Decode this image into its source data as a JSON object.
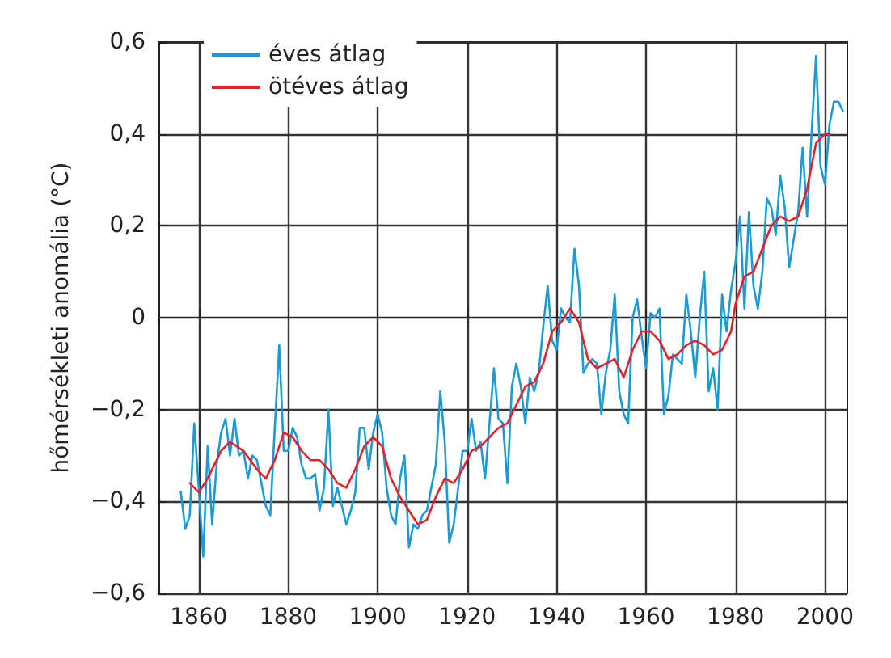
{
  "chart_data": {
    "type": "line",
    "ylabel": "hőmérsékleti anomália (°C)",
    "xlim": [
      1851,
      2005
    ],
    "xticks": [
      1860,
      1880,
      1900,
      1920,
      1940,
      1960,
      1980,
      2000
    ],
    "ylim": [
      -0.6,
      0.6
    ],
    "yticks": [
      {
        "value": -0.6,
        "label": "−0,6"
      },
      {
        "value": -0.4,
        "label": "−0,4"
      },
      {
        "value": -0.2,
        "label": "−0,2"
      },
      0,
      {
        "value": 0.2,
        "label": "0,2"
      },
      {
        "value": 0.4,
        "label": "0,4"
      },
      {
        "value": 0.6,
        "label": "0,6"
      }
    ],
    "grid": true,
    "legend": "top left",
    "marker": "none",
    "line_style": "solid",
    "series": [
      {
        "name": "éves átlag",
        "color": "#1a9ad6",
        "x": [
          1856,
          1857,
          1858,
          1859,
          1860,
          1861,
          1862,
          1863,
          1864,
          1865,
          1866,
          1867,
          1868,
          1869,
          1870,
          1871,
          1872,
          1873,
          1874,
          1875,
          1876,
          1877,
          1878,
          1879,
          1880,
          1881,
          1882,
          1883,
          1884,
          1885,
          1886,
          1887,
          1888,
          1889,
          1890,
          1891,
          1892,
          1893,
          1894,
          1895,
          1896,
          1897,
          1898,
          1899,
          1900,
          1901,
          1902,
          1903,
          1904,
          1905,
          1906,
          1907,
          1908,
          1909,
          1910,
          1911,
          1912,
          1913,
          1914,
          1915,
          1916,
          1917,
          1918,
          1919,
          1920,
          1921,
          1922,
          1923,
          1924,
          1925,
          1926,
          1927,
          1928,
          1929,
          1930,
          1931,
          1932,
          1933,
          1934,
          1935,
          1936,
          1937,
          1938,
          1939,
          1940,
          1941,
          1942,
          1943,
          1944,
          1945,
          1946,
          1947,
          1948,
          1949,
          1950,
          1951,
          1952,
          1953,
          1954,
          1955,
          1956,
          1957,
          1958,
          1959,
          1960,
          1961,
          1962,
          1963,
          1964,
          1965,
          1966,
          1967,
          1968,
          1969,
          1970,
          1971,
          1972,
          1973,
          1974,
          1975,
          1976,
          1977,
          1978,
          1979,
          1980,
          1981,
          1982,
          1983,
          1984,
          1985,
          1986,
          1987,
          1988,
          1989,
          1990,
          1991,
          1992,
          1993,
          1994,
          1995,
          1996,
          1997,
          1998,
          1999,
          2000,
          2001,
          2002,
          2003,
          2004
        ],
        "values": [
          -0.38,
          -0.46,
          -0.43,
          -0.23,
          -0.37,
          -0.52,
          -0.28,
          -0.45,
          -0.32,
          -0.25,
          -0.22,
          -0.3,
          -0.22,
          -0.3,
          -0.29,
          -0.35,
          -0.3,
          -0.31,
          -0.36,
          -0.41,
          -0.43,
          -0.24,
          -0.06,
          -0.29,
          -0.29,
          -0.24,
          -0.26,
          -0.32,
          -0.35,
          -0.35,
          -0.34,
          -0.42,
          -0.37,
          -0.2,
          -0.41,
          -0.37,
          -0.41,
          -0.45,
          -0.42,
          -0.38,
          -0.24,
          -0.24,
          -0.33,
          -0.25,
          -0.21,
          -0.25,
          -0.37,
          -0.43,
          -0.45,
          -0.35,
          -0.3,
          -0.5,
          -0.45,
          -0.46,
          -0.43,
          -0.42,
          -0.37,
          -0.32,
          -0.16,
          -0.27,
          -0.49,
          -0.45,
          -0.37,
          -0.29,
          -0.29,
          -0.22,
          -0.29,
          -0.27,
          -0.35,
          -0.23,
          -0.11,
          -0.22,
          -0.23,
          -0.36,
          -0.15,
          -0.1,
          -0.15,
          -0.23,
          -0.13,
          -0.16,
          -0.12,
          -0.02,
          0.07,
          -0.05,
          -0.07,
          0.02,
          0,
          -0.01,
          0.15,
          0.07,
          -0.12,
          -0.1,
          -0.09,
          -0.1,
          -0.21,
          -0.12,
          -0.07,
          0.05,
          -0.16,
          -0.21,
          -0.23,
          0,
          0.04,
          -0.04,
          -0.11,
          0.01,
          0,
          0.02,
          -0.21,
          -0.17,
          -0.08,
          -0.09,
          -0.1,
          0.05,
          -0.03,
          -0.13,
          0,
          0.1,
          -0.16,
          -0.11,
          -0.2,
          0.05,
          -0.03,
          0.06,
          0.12,
          0.22,
          0.02,
          0.23,
          0.07,
          0.02,
          0.1,
          0.26,
          0.24,
          0.18,
          0.31,
          0.24,
          0.11,
          0.17,
          0.23,
          0.37,
          0.22,
          0.4,
          0.57,
          0.33,
          0.29,
          0.42,
          0.47,
          0.47,
          0.45
        ]
      },
      {
        "name": "ötéves átlag",
        "color": "#e8202a",
        "x": [
          1858,
          1860,
          1862,
          1865,
          1867,
          1870,
          1873,
          1875,
          1877,
          1879,
          1881,
          1883,
          1885,
          1887,
          1889,
          1891,
          1893,
          1895,
          1897,
          1899,
          1901,
          1903,
          1905,
          1907,
          1909,
          1911,
          1913,
          1915,
          1917,
          1919,
          1921,
          1923,
          1925,
          1927,
          1929,
          1931,
          1933,
          1935,
          1937,
          1939,
          1941,
          1943,
          1945,
          1947,
          1949,
          1951,
          1953,
          1955,
          1957,
          1959,
          1961,
          1963,
          1965,
          1967,
          1969,
          1971,
          1973,
          1975,
          1977,
          1979,
          1980,
          1982,
          1984,
          1986,
          1988,
          1990,
          1992,
          1994,
          1996,
          1998,
          2000,
          2001
        ],
        "values": [
          -0.36,
          -0.38,
          -0.35,
          -0.29,
          -0.27,
          -0.29,
          -0.33,
          -0.35,
          -0.31,
          -0.25,
          -0.26,
          -0.29,
          -0.31,
          -0.31,
          -0.33,
          -0.36,
          -0.37,
          -0.33,
          -0.28,
          -0.26,
          -0.28,
          -0.35,
          -0.39,
          -0.42,
          -0.45,
          -0.44,
          -0.39,
          -0.35,
          -0.36,
          -0.33,
          -0.29,
          -0.28,
          -0.26,
          -0.24,
          -0.23,
          -0.19,
          -0.15,
          -0.14,
          -0.1,
          -0.03,
          -0.01,
          0.02,
          -0.01,
          -0.09,
          -0.11,
          -0.1,
          -0.09,
          -0.13,
          -0.07,
          -0.03,
          -0.03,
          -0.05,
          -0.09,
          -0.08,
          -0.06,
          -0.05,
          -0.06,
          -0.08,
          -0.07,
          -0.03,
          0.03,
          0.09,
          0.1,
          0.15,
          0.2,
          0.22,
          0.21,
          0.22,
          0.28,
          0.38,
          0.4,
          0.4
        ]
      }
    ]
  }
}
